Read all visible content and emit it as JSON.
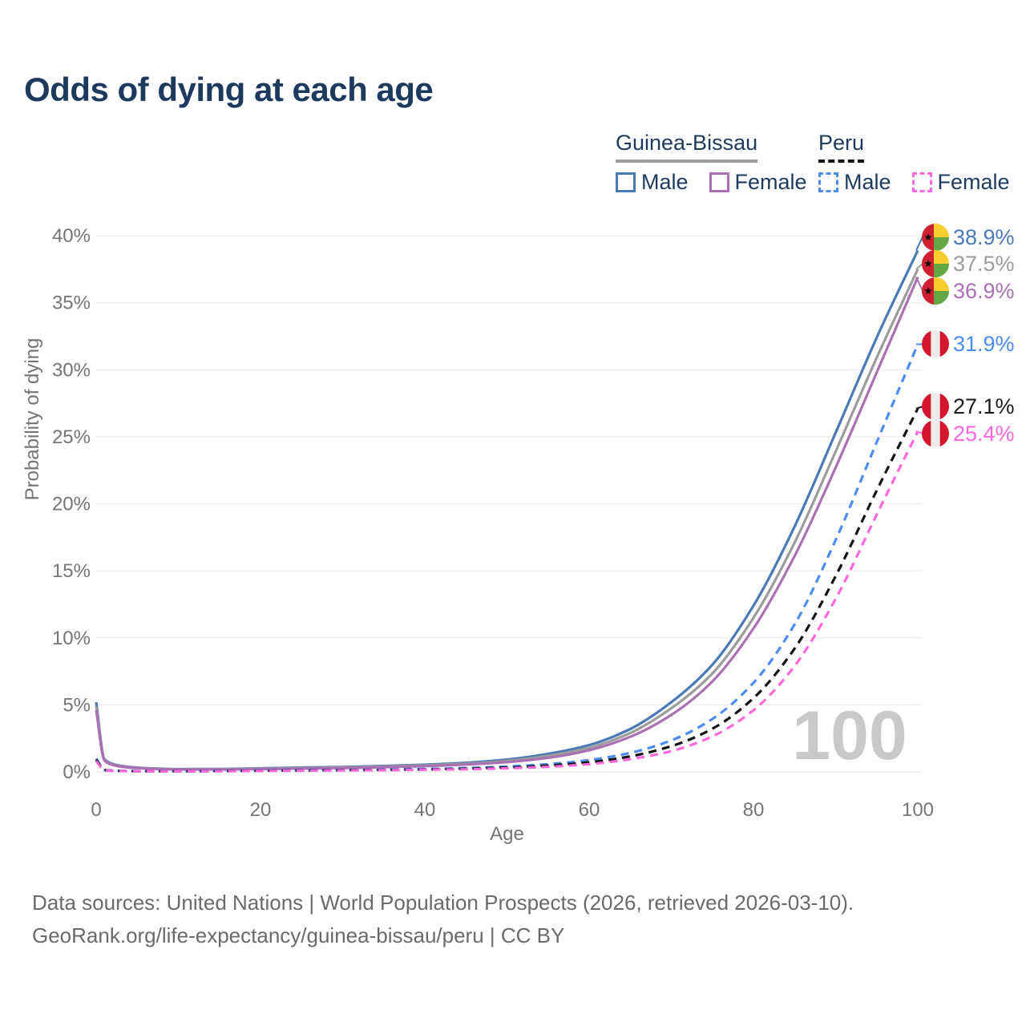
{
  "title": "Odds of dying at each age",
  "legend": {
    "groups": [
      {
        "label": "Guinea-Bissau",
        "line_style": "solid",
        "line_color": "#9a9a9a",
        "items": [
          {
            "label": "Male",
            "color": "#4a79b6",
            "style": "solid"
          },
          {
            "label": "Female",
            "color": "#ab6fb3",
            "style": "solid"
          }
        ]
      },
      {
        "label": "Peru",
        "line_style": "dashed",
        "line_color": "#141414",
        "items": [
          {
            "label": "Male",
            "color": "#4e8cf0",
            "style": "dashed"
          },
          {
            "label": "Female",
            "color": "#fb68dd",
            "style": "dashed"
          }
        ]
      }
    ]
  },
  "chart_data": {
    "type": "line",
    "title": "Odds of dying at each age",
    "xlabel": "Age",
    "ylabel": "Probability of dying",
    "xlim": [
      0,
      100
    ],
    "ylim": [
      0,
      40
    ],
    "xticks": [
      0,
      20,
      40,
      60,
      80,
      100
    ],
    "yticks": [
      "0%",
      "5%",
      "10%",
      "15%",
      "20%",
      "25%",
      "30%",
      "35%",
      "40%"
    ],
    "grid": true,
    "legend_position": "top-right",
    "watermark": "100",
    "x": [
      0,
      1,
      2,
      3,
      5,
      10,
      15,
      20,
      25,
      30,
      35,
      40,
      45,
      50,
      55,
      60,
      65,
      70,
      75,
      80,
      85,
      90,
      95,
      100
    ],
    "series": [
      {
        "id": "gb-male",
        "name": "Guinea-Bissau Male",
        "country": "guinea-bissau",
        "color": "#4a79b6",
        "dashed": false,
        "end_label": "38.9%",
        "label_color": "#4a79b6",
        "values": [
          5.2,
          0.95,
          0.6,
          0.45,
          0.32,
          0.21,
          0.22,
          0.27,
          0.32,
          0.37,
          0.44,
          0.54,
          0.68,
          0.92,
          1.35,
          2.0,
          3.2,
          5.2,
          8.0,
          12.4,
          18.3,
          25.3,
          32.4,
          38.9
        ]
      },
      {
        "id": "gb-all",
        "name": "Guinea-Bissau",
        "country": "guinea-bissau",
        "color": "#9c9c9c",
        "dashed": false,
        "end_label": "37.5%",
        "label_color": "#9c9c9c",
        "values": [
          4.9,
          0.9,
          0.56,
          0.42,
          0.3,
          0.19,
          0.2,
          0.24,
          0.28,
          0.33,
          0.4,
          0.49,
          0.61,
          0.82,
          1.2,
          1.8,
          2.9,
          4.75,
          7.35,
          11.5,
          17.1,
          23.9,
          30.9,
          37.5
        ]
      },
      {
        "id": "gb-female",
        "name": "Guinea-Bissau Female",
        "country": "guinea-bissau",
        "color": "#ab6fb3",
        "dashed": false,
        "end_label": "36.9%",
        "label_color": "#ab6fb3",
        "values": [
          4.6,
          0.85,
          0.52,
          0.39,
          0.28,
          0.18,
          0.18,
          0.21,
          0.25,
          0.29,
          0.35,
          0.43,
          0.55,
          0.73,
          1.05,
          1.62,
          2.62,
          4.25,
          6.75,
          10.7,
          16.1,
          22.7,
          29.8,
          36.9
        ]
      },
      {
        "id": "peru-male",
        "name": "Peru Male",
        "country": "peru",
        "color": "#4e8cf0",
        "dashed": true,
        "end_label": "31.9%",
        "label_color": "#4e8cf0",
        "values": [
          1.0,
          0.16,
          0.1,
          0.08,
          0.06,
          0.05,
          0.08,
          0.11,
          0.13,
          0.15,
          0.18,
          0.22,
          0.29,
          0.4,
          0.58,
          0.88,
          1.42,
          2.35,
          3.95,
          6.65,
          11.0,
          17.3,
          24.6,
          31.9
        ]
      },
      {
        "id": "peru-all",
        "name": "Peru",
        "country": "peru",
        "color": "#141414",
        "dashed": true,
        "end_label": "27.1%",
        "label_color": "#1a1a1a",
        "values": [
          0.9,
          0.14,
          0.09,
          0.07,
          0.055,
          0.045,
          0.065,
          0.09,
          0.11,
          0.13,
          0.15,
          0.18,
          0.24,
          0.33,
          0.47,
          0.72,
          1.16,
          1.92,
          3.22,
          5.5,
          9.2,
          14.6,
          21.0,
          27.1
        ]
      },
      {
        "id": "peru-female",
        "name": "Peru Female",
        "country": "peru",
        "color": "#fb68dd",
        "dashed": true,
        "end_label": "25.4%",
        "label_color": "#fb68dd",
        "values": [
          0.8,
          0.13,
          0.08,
          0.065,
          0.05,
          0.04,
          0.05,
          0.07,
          0.09,
          0.11,
          0.13,
          0.16,
          0.2,
          0.27,
          0.38,
          0.58,
          0.95,
          1.55,
          2.65,
          4.6,
          7.9,
          12.9,
          19.2,
          25.4
        ]
      }
    ],
    "flag_colors": {
      "guinea_bissau_red": "#ce2031",
      "guinea_bissau_yellow": "#f7ce2e",
      "guinea_bissau_green": "#62a744",
      "guinea_bissau_star": "#111111",
      "peru_red": "#d5172d",
      "peru_white": "#ececec"
    }
  },
  "footer": {
    "line1": "Data sources: United Nations | World Population Prospects (2026, retrieved 2026-03-10).",
    "line2": "GeoRank.org/life-expectancy/guinea-bissau/peru | CC BY"
  }
}
